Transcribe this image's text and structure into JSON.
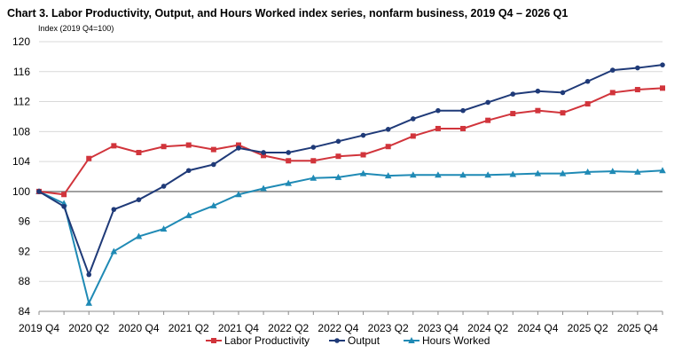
{
  "chart_data": {
    "type": "line",
    "title": "Chart 3. Labor Productivity, Output, and Hours Worked index series, nonfarm business, 2019 Q4 – 2026 Q1",
    "ylabel": "Index (2019 Q4=100)",
    "xlabel": "",
    "ylim": [
      84,
      120
    ],
    "yticks": [
      84,
      88,
      92,
      96,
      100,
      104,
      108,
      112,
      116,
      120
    ],
    "x": [
      "2019 Q4",
      "2020 Q1",
      "2020 Q2",
      "2020 Q3",
      "2020 Q4",
      "2021 Q1",
      "2021 Q2",
      "2021 Q3",
      "2021 Q4",
      "2022 Q1",
      "2022 Q2",
      "2022 Q3",
      "2022 Q4",
      "2023 Q1",
      "2023 Q2",
      "2023 Q3",
      "2023 Q4",
      "2024 Q1",
      "2024 Q2",
      "2024 Q3",
      "2024 Q4",
      "2025 Q1",
      "2025 Q2",
      "2025 Q3",
      "2025 Q4",
      "2026 Q1"
    ],
    "xtick_labels": [
      "2019 Q4",
      "2020 Q2",
      "2020 Q4",
      "2021 Q2",
      "2021 Q4",
      "2022 Q2",
      "2022 Q4",
      "2023 Q2",
      "2023 Q4",
      "2024 Q2",
      "2024 Q4",
      "2025 Q2",
      "2025 Q4"
    ],
    "grid": "horizontal",
    "reference_line": 100,
    "legend_position": "bottom",
    "series": [
      {
        "name": "Labor Productivity",
        "color": "#d1343b",
        "marker": "square",
        "values": [
          100.0,
          99.6,
          104.4,
          106.1,
          105.2,
          106.0,
          106.2,
          105.6,
          106.2,
          104.8,
          104.1,
          104.1,
          104.7,
          104.9,
          106.0,
          107.4,
          108.4,
          108.4,
          109.5,
          110.4,
          110.8,
          110.5,
          111.7,
          113.2,
          113.6,
          113.8
        ]
      },
      {
        "name": "Output",
        "color": "#1f3a78",
        "marker": "circle",
        "values": [
          100.0,
          98.0,
          88.9,
          97.6,
          98.9,
          100.7,
          102.8,
          103.6,
          105.8,
          105.2,
          105.2,
          105.9,
          106.7,
          107.5,
          108.3,
          109.7,
          110.8,
          110.8,
          111.9,
          113.0,
          113.4,
          113.2,
          114.7,
          116.2,
          116.5,
          116.9
        ]
      },
      {
        "name": "Hours Worked",
        "color": "#1f8ab5",
        "marker": "triangle",
        "values": [
          100.0,
          98.4,
          85.1,
          92.0,
          94.0,
          95.0,
          96.8,
          98.1,
          99.6,
          100.4,
          101.1,
          101.8,
          101.9,
          102.4,
          102.1,
          102.2,
          102.2,
          102.2,
          102.2,
          102.3,
          102.4,
          102.4,
          102.6,
          102.7,
          102.6,
          102.8
        ]
      }
    ]
  }
}
